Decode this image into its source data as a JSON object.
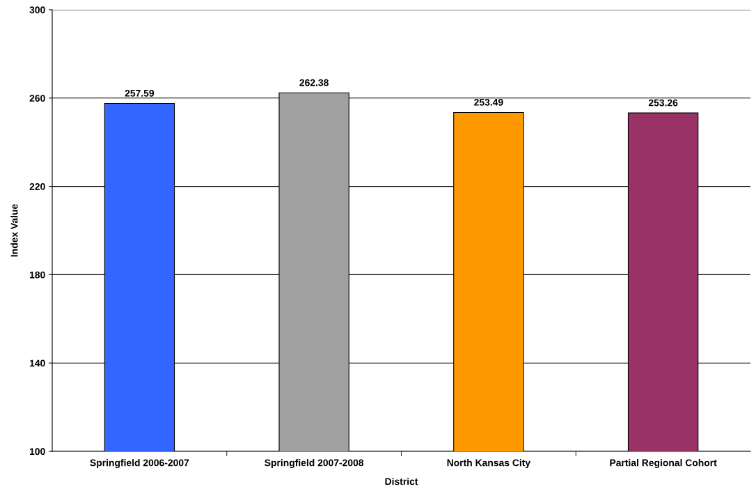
{
  "chart_data": {
    "type": "bar",
    "xlabel": "District",
    "ylabel": "Index Value",
    "categories": [
      "Springfield 2006-2007",
      "Springfield 2007-2008",
      "North Kansas City",
      "Partial Regional Cohort"
    ],
    "values": [
      257.59,
      262.38,
      253.49,
      253.26
    ],
    "colors": [
      "#3366ff",
      "#a0a0a0",
      "#ff9900",
      "#993366"
    ],
    "ylim": [
      100,
      300
    ],
    "yticks": [
      100,
      140,
      180,
      220,
      260,
      300
    ],
    "grid": "y",
    "data_labels": true
  }
}
